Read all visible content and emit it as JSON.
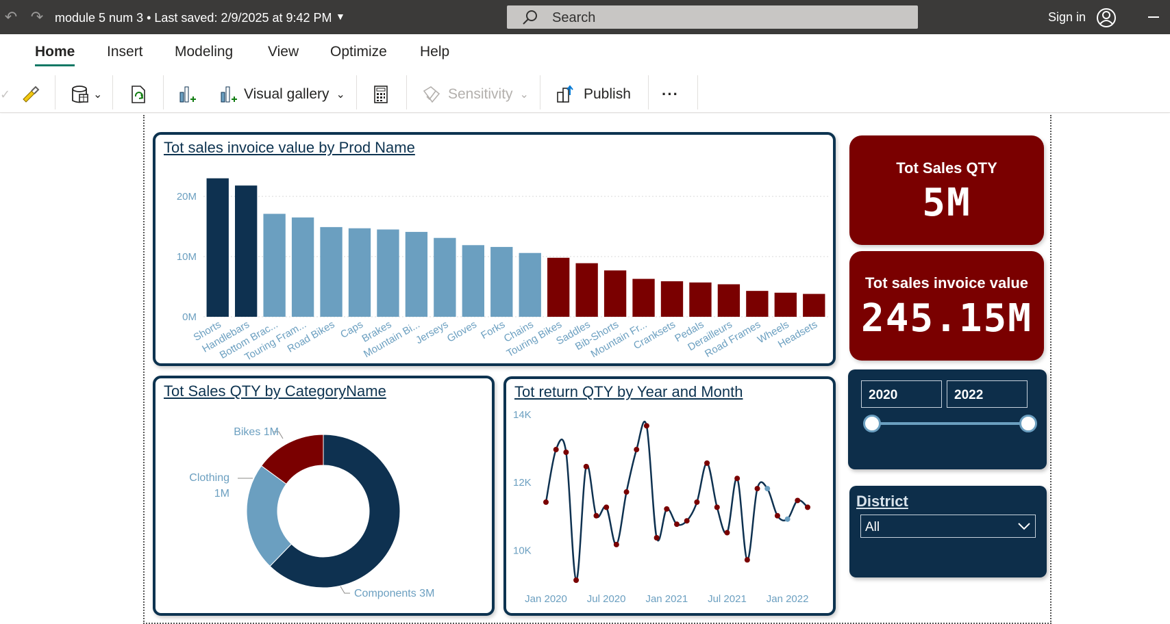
{
  "titlebar": {
    "doc_title": "module 5 num 3",
    "saved": " • Last saved: 2/9/2025 at 9:42 PM",
    "search_placeholder": "Search",
    "signin": "Sign in"
  },
  "ribbon": {
    "tabs": [
      "Home",
      "Insert",
      "Modeling",
      "View",
      "Optimize",
      "Help"
    ],
    "visual_gallery": "Visual gallery",
    "sensitivity": "Sensitivity",
    "publish": "Publish",
    "more": "···"
  },
  "kpis": {
    "qty_label": "Tot Sales QTY",
    "qty_value": "5M",
    "invoice_label": "Tot sales invoice value",
    "invoice_value": "245.15M"
  },
  "slicer": {
    "from": "2020",
    "to": "2022",
    "from_fraction": 0.0,
    "to_fraction": 1.0
  },
  "district": {
    "title": "District",
    "selected": "All"
  },
  "colors": {
    "navy": "#0d2e4a",
    "dark_blue": "#0e3150",
    "light_blue": "#6b9fc0",
    "dark_red": "#7a0000"
  },
  "chart_data": [
    {
      "type": "bar",
      "title": "Tot sales invoice value by Prod Name",
      "categories": [
        "Shorts",
        "Handlebars",
        "Bottom Brac...",
        "Touring Fram...",
        "Road Bikes",
        "Caps",
        "Brakes",
        "Mountain Bi...",
        "Jerseys",
        "Gloves",
        "Forks",
        "Chains",
        "Touring Bikes",
        "Saddles",
        "Bib-Shorts",
        "Mountain Fr...",
        "Cranksets",
        "Pedals",
        "Derailleurs",
        "Road Frames",
        "Wheels",
        "Headsets"
      ],
      "values": [
        23,
        21.8,
        17.1,
        16.5,
        14.9,
        14.7,
        14.5,
        14.1,
        13.1,
        11.9,
        11.6,
        10.6,
        9.8,
        8.9,
        7.7,
        6.3,
        5.9,
        5.7,
        5.4,
        4.3,
        4.0,
        3.8
      ],
      "bar_colors": [
        "#0e3150",
        "#0e3150",
        "#6b9fc0",
        "#6b9fc0",
        "#6b9fc0",
        "#6b9fc0",
        "#6b9fc0",
        "#6b9fc0",
        "#6b9fc0",
        "#6b9fc0",
        "#6b9fc0",
        "#6b9fc0",
        "#7a0000",
        "#7a0000",
        "#7a0000",
        "#7a0000",
        "#7a0000",
        "#7a0000",
        "#7a0000",
        "#7a0000",
        "#7a0000",
        "#7a0000"
      ],
      "yticks": [
        {
          "v": 0,
          "label": "0M"
        },
        {
          "v": 10,
          "label": "10M"
        },
        {
          "v": 20,
          "label": "20M"
        }
      ],
      "ylim": [
        0,
        25
      ],
      "grid": true
    },
    {
      "type": "pie",
      "title": "Tot Sales QTY by CategoryName",
      "slices": [
        {
          "name": "Components",
          "value": 3,
          "color": "#0e3150",
          "label": "Components 3M"
        },
        {
          "name": "Clothing",
          "value": 1.1,
          "color": "#6b9fc0",
          "label_lines": [
            "Clothing",
            "1M"
          ]
        },
        {
          "name": "Bikes",
          "value": 0.72,
          "color": "#7a0000",
          "label": "Bikes 1M"
        }
      ]
    },
    {
      "type": "line",
      "title": "Tot return QTY by Year and Month",
      "yticks": [
        {
          "v": 10000,
          "label": "10K"
        },
        {
          "v": 12000,
          "label": "12K"
        },
        {
          "v": 14000,
          "label": "14K"
        }
      ],
      "xticks": [
        {
          "i": 0,
          "label": "Jan 2020"
        },
        {
          "i": 6,
          "label": "Jul 2020"
        },
        {
          "i": 12,
          "label": "Jan 2021"
        },
        {
          "i": 18,
          "label": "Jul 2021"
        },
        {
          "i": 24,
          "label": "Jan 2022"
        }
      ],
      "ylim": [
        9100,
        14100
      ],
      "values": [
        11400,
        12950,
        12870,
        9100,
        12450,
        11000,
        11250,
        10150,
        11700,
        12950,
        13650,
        10350,
        11200,
        10750,
        10850,
        11400,
        12550,
        11250,
        10500,
        12100,
        9700,
        11800,
        11800,
        11000,
        10900,
        11450,
        11250
      ],
      "point_colors": [
        "#7a0000",
        "#7a0000",
        "#7a0000",
        "#7a0000",
        "#7a0000",
        "#7a0000",
        "#7a0000",
        "#7a0000",
        "#7a0000",
        "#7a0000",
        "#7a0000",
        "#7a0000",
        "#7a0000",
        "#7a0000",
        "#7a0000",
        "#7a0000",
        "#7a0000",
        "#7a0000",
        "#7a0000",
        "#7a0000",
        "#7a0000",
        "#7a0000",
        "#6b9fc0",
        "#7a0000",
        "#6b9fc0",
        "#7a0000",
        "#7a0000"
      ]
    }
  ]
}
